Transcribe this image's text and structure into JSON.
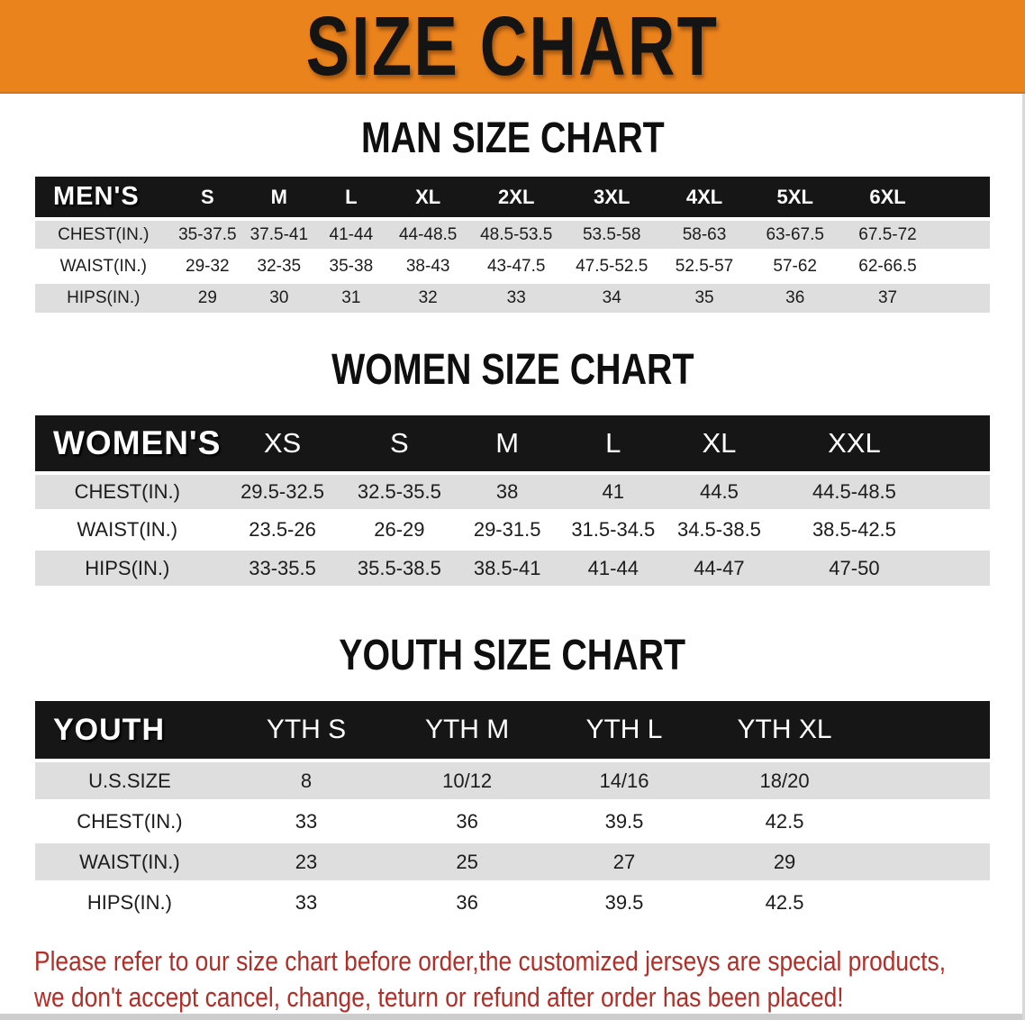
{
  "banner": {
    "title": "SIZE CHART"
  },
  "colors": {
    "banner_orange": "#EB831D",
    "table_header_black": "#161616",
    "row_shade_gray": "#DEDEDE",
    "notice_red": "#B22E28"
  },
  "sections": [
    {
      "id": "men",
      "heading": "MAN SIZE CHART",
      "table": {
        "label": "MEN'S",
        "columns": [
          "S",
          "M",
          "L",
          "XL",
          "2XL",
          "3XL",
          "4XL",
          "5XL",
          "6XL"
        ],
        "rows": [
          {
            "label": "CHEST(IN.)",
            "values": [
              "35-37.5",
              "37.5-41",
              "41-44",
              "44-48.5",
              "48.5-53.5",
              "53.5-58",
              "58-63",
              "63-67.5",
              "67.5-72"
            ]
          },
          {
            "label": "WAIST(IN.)",
            "values": [
              "29-32",
              "32-35",
              "35-38",
              "38-43",
              "43-47.5",
              "47.5-52.5",
              "52.5-57",
              "57-62",
              "62-66.5"
            ]
          },
          {
            "label": "HIPS(IN.)",
            "values": [
              "29",
              "30",
              "31",
              "32",
              "33",
              "34",
              "35",
              "36",
              "37"
            ]
          }
        ]
      }
    },
    {
      "id": "women",
      "heading": "WOMEN SIZE CHART",
      "table": {
        "label": "WOMEN'S",
        "columns": [
          "XS",
          "S",
          "M",
          "L",
          "XL",
          "XXL"
        ],
        "rows": [
          {
            "label": "CHEST(IN.)",
            "values": [
              "29.5-32.5",
              "32.5-35.5",
              "38",
              "41",
              "44.5",
              "44.5-48.5"
            ]
          },
          {
            "label": "WAIST(IN.)",
            "values": [
              "23.5-26",
              "26-29",
              "29-31.5",
              "31.5-34.5",
              "34.5-38.5",
              "38.5-42.5"
            ]
          },
          {
            "label": "HIPS(IN.)",
            "values": [
              "33-35.5",
              "35.5-38.5",
              "38.5-41",
              "41-44",
              "44-47",
              "47-50"
            ]
          }
        ]
      }
    },
    {
      "id": "youth",
      "heading": "YOUTH SIZE CHART",
      "table": {
        "label": "YOUTH",
        "columns": [
          "YTH S",
          "YTH M",
          "YTH L",
          "YTH XL"
        ],
        "rows": [
          {
            "label": "U.S.SIZE",
            "values": [
              "8",
              "10/12",
              "14/16",
              "18/20"
            ]
          },
          {
            "label": "CHEST(IN.)",
            "values": [
              "33",
              "36",
              "39.5",
              "42.5"
            ]
          },
          {
            "label": "WAIST(IN.)",
            "values": [
              "23",
              "25",
              "27",
              "29"
            ]
          },
          {
            "label": "HIPS(IN.)",
            "values": [
              "33",
              "36",
              "39.5",
              "42.5"
            ]
          }
        ]
      }
    }
  ],
  "footer": {
    "line1": "Please refer to our size chart before order,the customized jerseys are special products,",
    "line2": "we don't accept cancel, change, teturn or refund after order has been placed!"
  }
}
